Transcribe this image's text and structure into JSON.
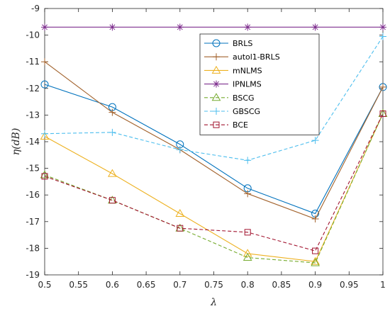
{
  "chart_data": {
    "type": "line",
    "x": [
      0.5,
      0.6,
      0.7,
      0.8,
      0.9,
      1
    ],
    "xlabel": "λ",
    "ylabel": "η(dB)",
    "xlim": [
      0.5,
      1
    ],
    "ylim": [
      -19,
      -9
    ],
    "xticks": [
      "0.5",
      "0.55",
      "0.6",
      "0.65",
      "0.7",
      "0.75",
      "0.8",
      "0.85",
      "0.9",
      "0.95",
      "1"
    ],
    "yticks": [
      "-9",
      "-10",
      "-11",
      "-12",
      "-13",
      "-14",
      "-15",
      "-16",
      "-17",
      "-18",
      "-19"
    ],
    "grid": false,
    "legend_position": "top-right",
    "series": [
      {
        "name": "BRLS",
        "values": [
          -11.85,
          -12.7,
          -14.1,
          -15.75,
          -16.7,
          -11.95
        ],
        "color": "#0072BD",
        "marker": "circle",
        "dash": "solid"
      },
      {
        "name": "autol1-BRLS",
        "values": [
          -11.0,
          -12.9,
          -14.3,
          -15.95,
          -16.9,
          -11.95
        ],
        "color": "#A2622C",
        "marker": "plus",
        "dash": "solid"
      },
      {
        "name": "mNLMS",
        "values": [
          -13.8,
          -15.2,
          -16.7,
          -18.2,
          -18.5,
          -12.95
        ],
        "color": "#EDB120",
        "marker": "triangle",
        "dash": "solid"
      },
      {
        "name": "IPNLMS",
        "values": [
          -9.7,
          -9.7,
          -9.7,
          -9.7,
          -9.7,
          -9.7
        ],
        "color": "#7E2F8E",
        "marker": "asterisk",
        "dash": "solid"
      },
      {
        "name": "BSCG",
        "values": [
          -15.25,
          -16.2,
          -17.25,
          -18.35,
          -18.55,
          -12.95
        ],
        "color": "#77AC30",
        "marker": "triangle",
        "dash": "dashed"
      },
      {
        "name": "GBSCG",
        "values": [
          -13.7,
          -13.65,
          -14.3,
          -14.7,
          -13.95,
          -10.05
        ],
        "color": "#4DBEEE",
        "marker": "plus",
        "dash": "dashed"
      },
      {
        "name": "BCE",
        "values": [
          -15.3,
          -16.2,
          -17.25,
          -17.4,
          -18.1,
          -12.95
        ],
        "color": "#A2142F",
        "marker": "square",
        "dash": "dashed"
      }
    ]
  }
}
